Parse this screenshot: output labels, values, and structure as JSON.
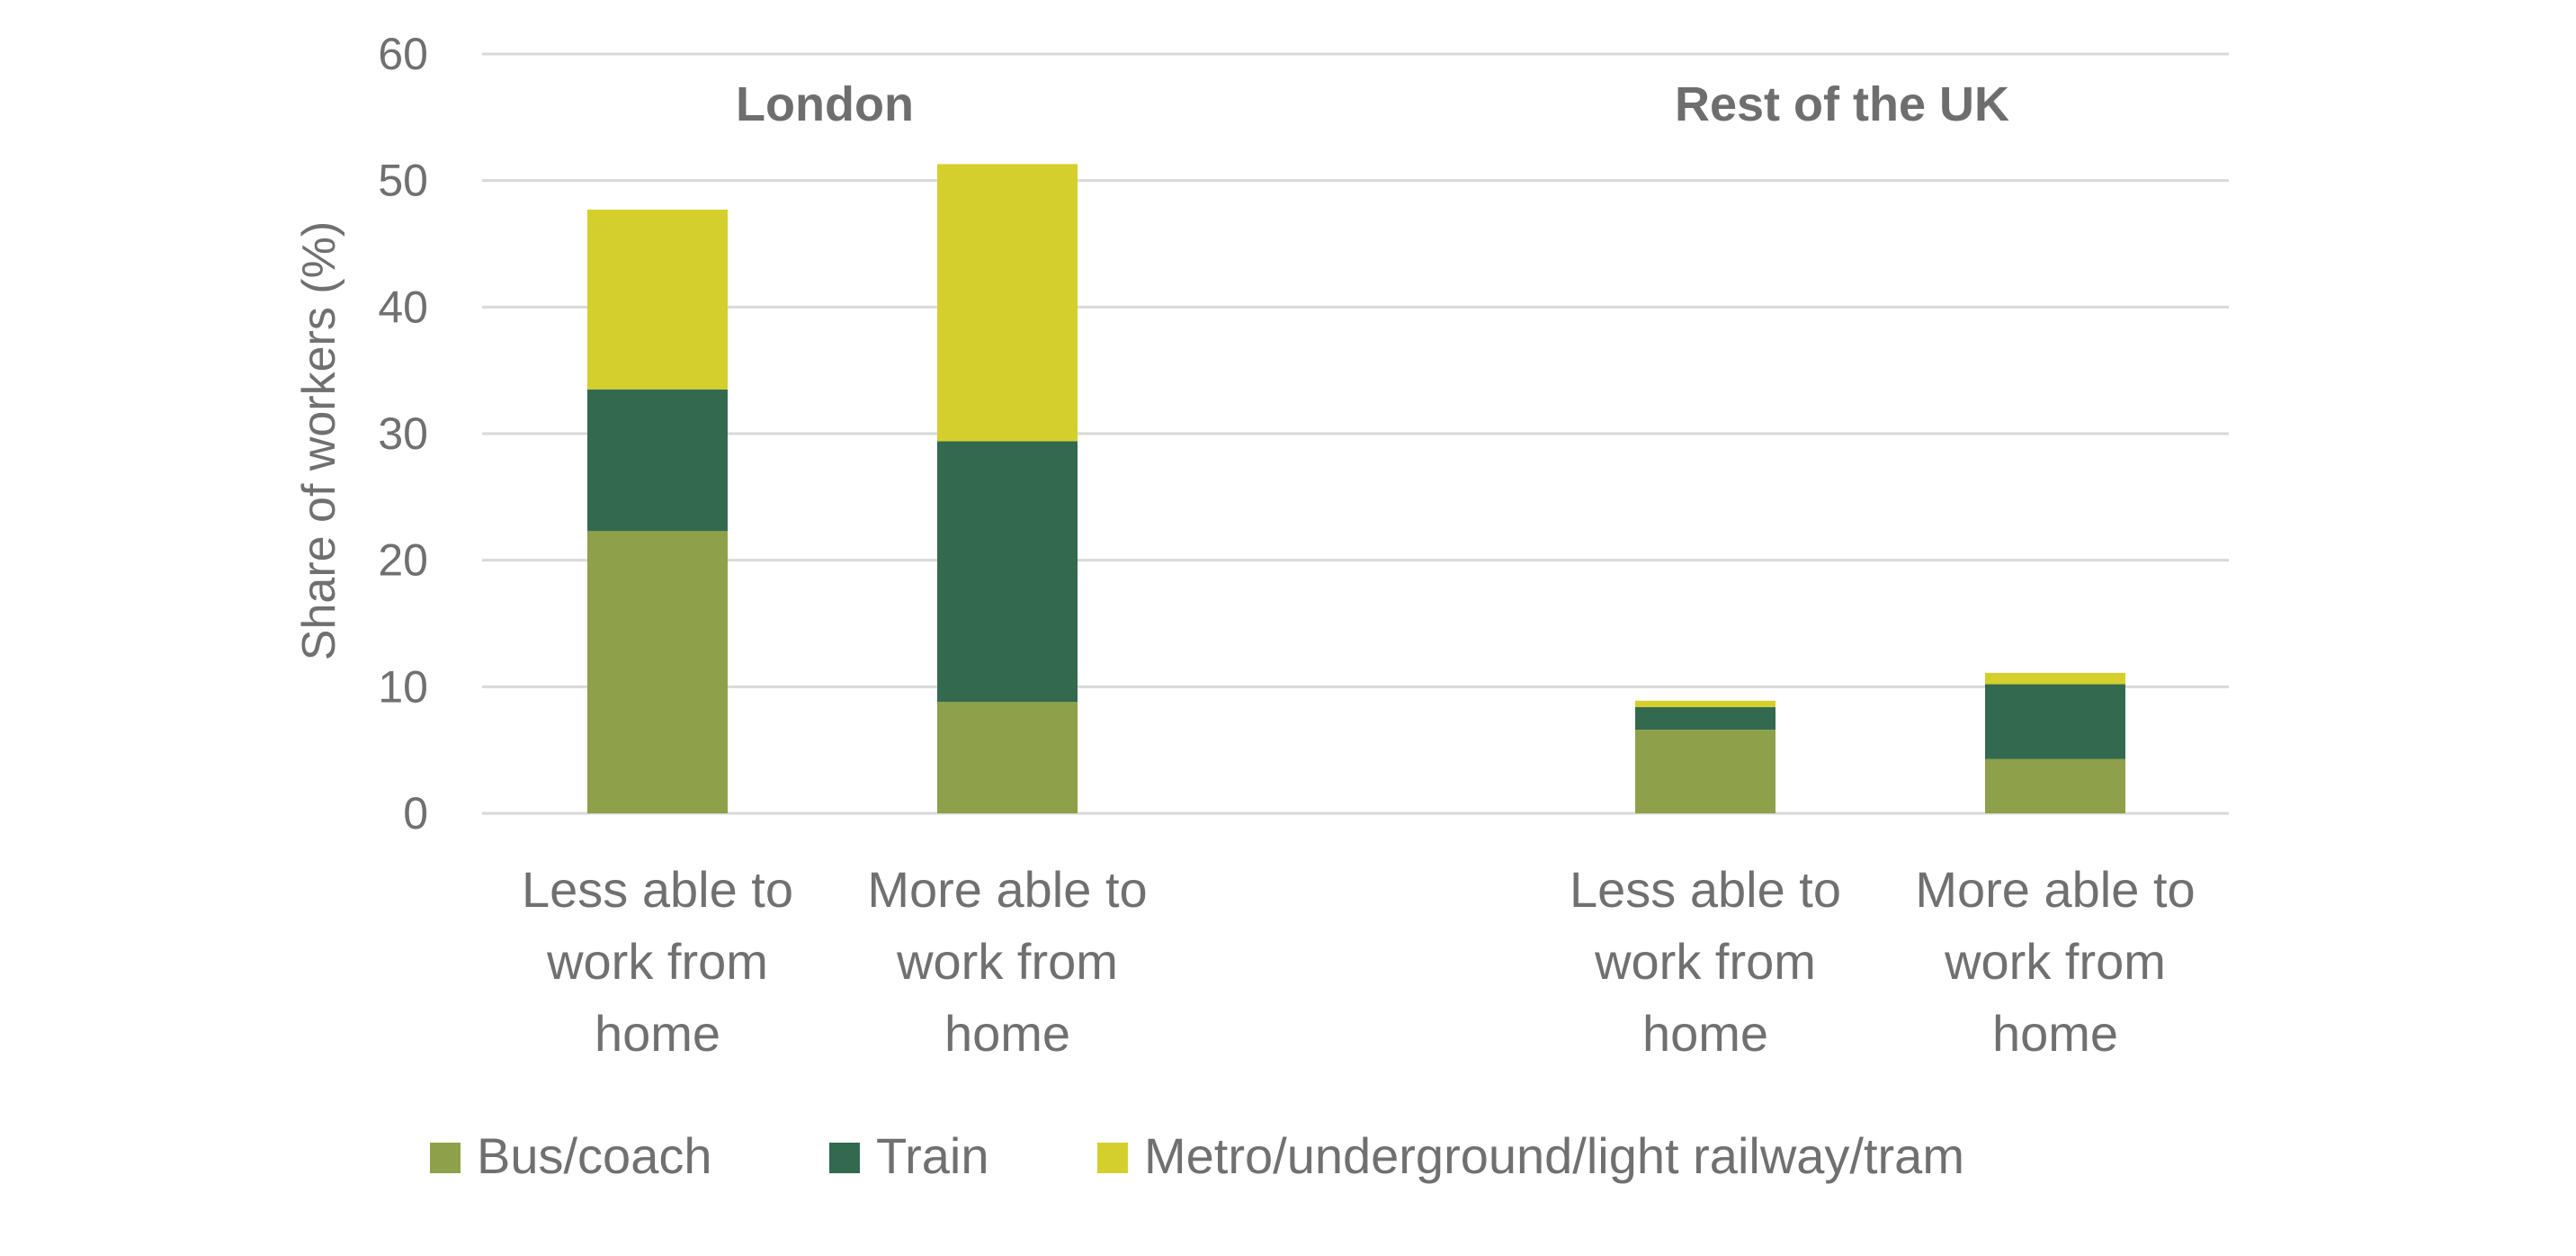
{
  "chart_data": {
    "type": "bar",
    "stacked": true,
    "ylabel": "Share of workers (%)",
    "ylim": [
      0,
      60
    ],
    "yticks": [
      0,
      10,
      20,
      30,
      40,
      50,
      60
    ],
    "grid": true,
    "legend_position": "bottom",
    "groups": [
      {
        "label": "London",
        "categories": [
          [
            "Less able to",
            "work from",
            "home"
          ],
          [
            "More able to",
            "work from",
            "home"
          ]
        ]
      },
      {
        "label": "Rest of the UK",
        "categories": [
          [
            "Less able to",
            "work from",
            "home"
          ],
          [
            "More able to",
            "work from",
            "home"
          ]
        ]
      }
    ],
    "series": [
      {
        "name": "Bus/coach",
        "color": "#8ea049",
        "values": [
          22.3,
          8.8,
          6.6,
          4.3
        ]
      },
      {
        "name": "Train",
        "color": "#336a4f",
        "values": [
          11.2,
          20.6,
          1.8,
          5.9
        ]
      },
      {
        "name": "Metro/underground/light railway/tram",
        "color": "#d4cf2d",
        "values": [
          14.2,
          21.9,
          0.5,
          0.9
        ]
      }
    ]
  }
}
